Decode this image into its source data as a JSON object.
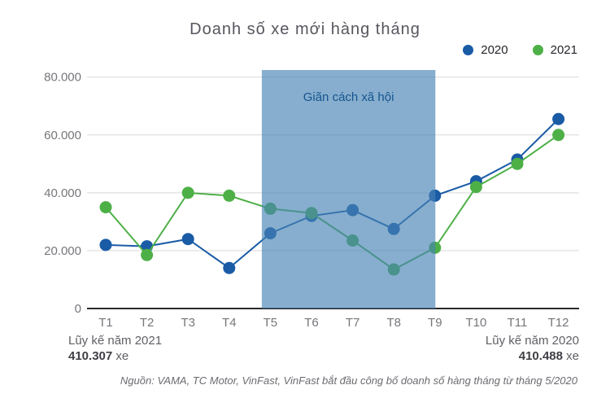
{
  "chart_data": {
    "type": "line",
    "title": "Doanh số xe mới hàng tháng",
    "categories": [
      "T1",
      "T2",
      "T3",
      "T4",
      "T5",
      "T6",
      "T7",
      "T8",
      "T9",
      "T10",
      "T11",
      "T12"
    ],
    "series": [
      {
        "name": "2020",
        "color": "#1A5BA6",
        "values": [
          22000,
          21500,
          24000,
          14000,
          26000,
          32000,
          34000,
          27500,
          39000,
          44000,
          51500,
          65500
        ]
      },
      {
        "name": "2021",
        "color": "#4DB047",
        "values": [
          35000,
          18500,
          40000,
          39000,
          34500,
          33000,
          23500,
          13500,
          21000,
          42000,
          50000,
          60000
        ]
      }
    ],
    "ylim": [
      0,
      80000
    ],
    "ytick_step": 20000,
    "ytick_labels": [
      "0",
      "20.000",
      "40.000",
      "60.000",
      "80.000"
    ],
    "grid": true,
    "legend_position": "top-right",
    "annotation_band": {
      "label": "Giãn cách xã hội",
      "from_month": "T5",
      "to_month": "T9",
      "color": "#4682B4",
      "opacity": 0.65,
      "label_color": "#17548F"
    }
  },
  "footer": {
    "left": {
      "caption": "Lũy kế năm 2021",
      "value": "410.307",
      "unit": "xe"
    },
    "right": {
      "caption": "Lũy kế năm 2020",
      "value": "410.488",
      "unit": "xe"
    },
    "source": "Nguồn: VAMA, TC Motor, VinFast, VinFast bắt đầu công bố doanh số hàng tháng từ tháng 5/2020"
  }
}
